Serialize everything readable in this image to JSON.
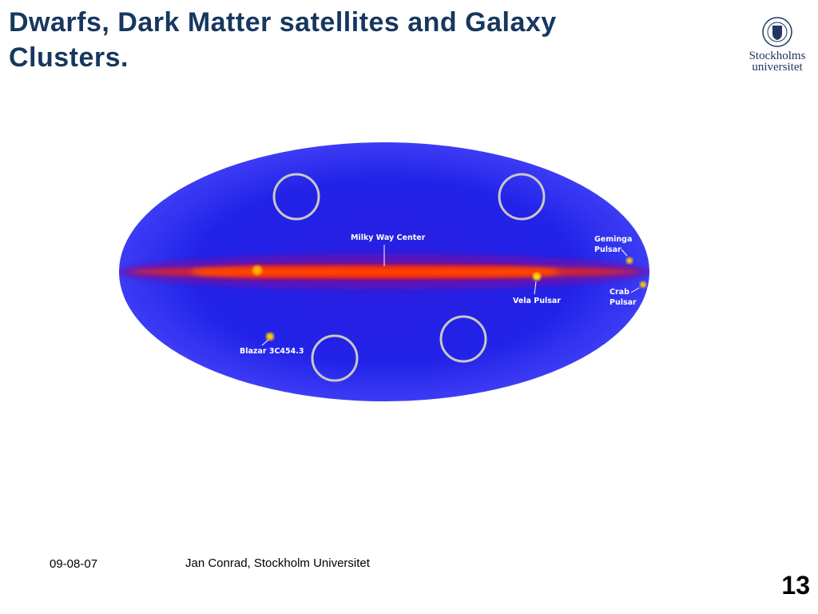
{
  "header": {
    "title": "Dwarfs, Dark Matter satellites and Galaxy Clusters.",
    "logo": [
      "Stockholms",
      "universitet"
    ]
  },
  "figure": {
    "labels": [
      {
        "lines": [
          "Milky Way Center"
        ]
      },
      {
        "lines": [
          "Geminga",
          "Pulsar"
        ]
      },
      {
        "lines": [
          "Vela Pulsar"
        ]
      },
      {
        "lines": [
          "Crab",
          "Pulsar"
        ]
      },
      {
        "lines": [
          "Blazar 3C454.3"
        ]
      }
    ]
  },
  "footer": {
    "date": "09-08-07",
    "author": "Jan Conrad, Stockholm Universitet",
    "page": "13"
  }
}
